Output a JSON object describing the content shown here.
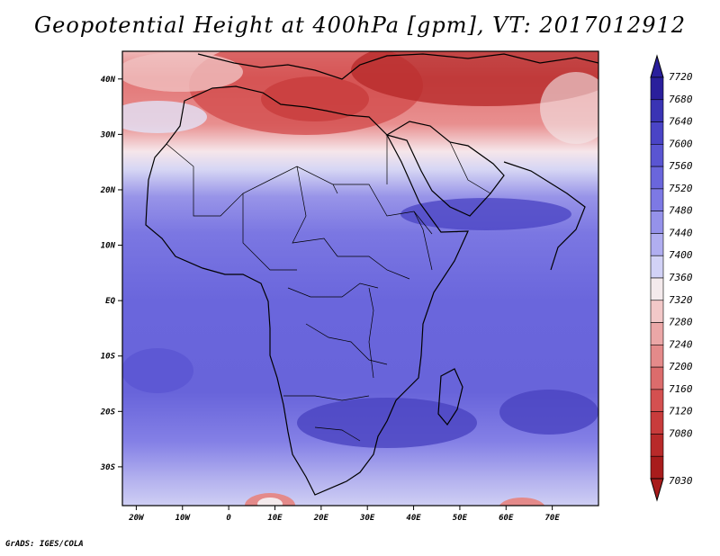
{
  "title": "Geopotential Height at 400hPa [gpm], VT: 2017012912",
  "footer": "GrADS: IGES/COLA",
  "map": {
    "projection": "lat-lon",
    "lon_range": [
      -23,
      80
    ],
    "lat_range": [
      -37,
      45
    ],
    "lat_ticks": [
      {
        "value": 40,
        "label": "40N"
      },
      {
        "value": 30,
        "label": "30N"
      },
      {
        "value": 20,
        "label": "20N"
      },
      {
        "value": 10,
        "label": "10N"
      },
      {
        "value": 0,
        "label": "EQ"
      },
      {
        "value": -10,
        "label": "10S"
      },
      {
        "value": -20,
        "label": "20S"
      },
      {
        "value": -30,
        "label": "30S"
      }
    ],
    "lon_ticks": [
      {
        "value": -20,
        "label": "20W"
      },
      {
        "value": -10,
        "label": "10W"
      },
      {
        "value": 0,
        "label": "0"
      },
      {
        "value": 10,
        "label": "10E"
      },
      {
        "value": 20,
        "label": "20E"
      },
      {
        "value": 30,
        "label": "30E"
      },
      {
        "value": 40,
        "label": "40E"
      },
      {
        "value": 50,
        "label": "50E"
      },
      {
        "value": 60,
        "label": "60E"
      },
      {
        "value": 70,
        "label": "70E"
      }
    ],
    "field_bands": [
      {
        "band": "north high (red)",
        "lat": [
          34,
          45
        ],
        "level_gpm": 7080
      },
      {
        "band": "subtropical transition",
        "lat": [
          26,
          34
        ],
        "level_gpm": 7400
      },
      {
        "band": "tropics (blue)",
        "lat": [
          -28,
          26
        ],
        "level_gpm": 7560
      },
      {
        "band": "southern transition",
        "lat": [
          -37,
          -28
        ],
        "level_gpm": 7440
      }
    ]
  },
  "colorbar": {
    "levels": [
      "7720",
      "7680",
      "7640",
      "7600",
      "7560",
      "7520",
      "7480",
      "7440",
      "7400",
      "7360",
      "7320",
      "7280",
      "7240",
      "7200",
      "7160",
      "7120",
      "7080",
      "7030"
    ],
    "colors": [
      "#2a1f9c",
      "#3a34b4",
      "#4a44c6",
      "#5a55d2",
      "#6a66dc",
      "#7d79e4",
      "#9592ea",
      "#b0aef0",
      "#d2d2f6",
      "#f4eaec",
      "#f2c8c8",
      "#eba7a7",
      "#e48a8a",
      "#dc6c6c",
      "#d45050",
      "#c83c3c",
      "#b82a2a",
      "#a81c1c"
    ]
  }
}
